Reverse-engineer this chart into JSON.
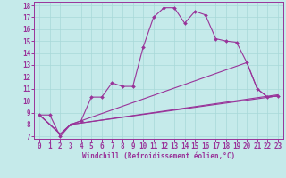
{
  "xlabel": "Windchill (Refroidissement éolien,°C)",
  "bg_color": "#c5eaea",
  "line_color": "#993399",
  "grid_color": "#a8d8d8",
  "xlim": [
    -0.5,
    23.5
  ],
  "ylim": [
    6.8,
    18.3
  ],
  "xticks": [
    0,
    1,
    2,
    3,
    4,
    5,
    6,
    7,
    8,
    9,
    10,
    11,
    12,
    13,
    14,
    15,
    16,
    17,
    18,
    19,
    20,
    21,
    22,
    23
  ],
  "yticks": [
    7,
    8,
    9,
    10,
    11,
    12,
    13,
    14,
    15,
    16,
    17,
    18
  ],
  "line1_x": [
    0,
    1,
    2,
    3,
    4,
    5,
    6,
    7,
    8,
    9,
    10,
    11,
    12,
    13,
    14,
    15,
    16,
    17,
    18,
    19,
    20,
    21,
    22,
    23
  ],
  "line1_y": [
    8.8,
    8.8,
    7.0,
    8.0,
    8.3,
    10.3,
    10.3,
    11.5,
    11.2,
    11.2,
    14.5,
    17.0,
    17.8,
    17.8,
    16.5,
    17.5,
    17.2,
    15.2,
    15.0,
    14.9,
    13.2,
    11.0,
    10.3,
    10.4
  ],
  "line2_x": [
    0,
    2,
    3,
    23
  ],
  "line2_y": [
    8.8,
    7.2,
    8.0,
    10.4
  ],
  "line3_x": [
    0,
    2,
    3,
    20,
    21,
    22,
    23
  ],
  "line3_y": [
    8.8,
    7.2,
    8.0,
    13.2,
    11.0,
    10.3,
    10.4
  ],
  "line4_x": [
    0,
    2,
    3,
    23
  ],
  "line4_y": [
    8.8,
    7.2,
    8.0,
    10.5
  ],
  "tick_fontsize": 5.5,
  "xlabel_fontsize": 5.5
}
